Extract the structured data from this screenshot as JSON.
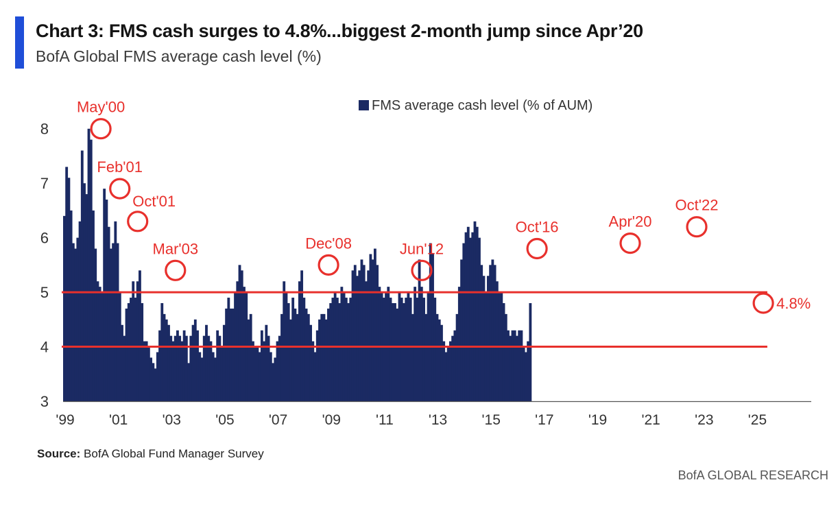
{
  "header": {
    "title": "Chart 3: FMS cash surges to 4.8%...biggest 2-month jump since Apr’20",
    "subtitle": "BofA Global FMS average cash level (%)"
  },
  "footer": {
    "source_label": "Source:",
    "source_text": " BofA Global Fund Manager Survey",
    "brand": "BofA GLOBAL RESEARCH"
  },
  "colors": {
    "bar": "#1b2a63",
    "accent_line": "#e8302c",
    "annotation": "#e8302c",
    "title_bar": "#1f4ed8",
    "axis": "#555555"
  },
  "chart_data": {
    "type": "bar",
    "ylim": [
      3,
      8.5
    ],
    "ytick_values": [
      3,
      4,
      5,
      6,
      7,
      8
    ],
    "ytick_labels": [
      "3",
      "4",
      "5",
      "6",
      "7",
      "8"
    ],
    "x_range": [
      1999.0,
      2027.1
    ],
    "xtick_values": [
      1999,
      2001,
      2003,
      2005,
      2007,
      2009,
      2011,
      2013,
      2015,
      2017,
      2019,
      2021,
      2023,
      2025
    ],
    "xtick_labels": [
      "'99",
      "'01",
      "'03",
      "'05",
      "'07",
      "'09",
      "'11",
      "'13",
      "'15",
      "'17",
      "'19",
      "'21",
      "'23",
      "'25"
    ],
    "grid": false,
    "legend": {
      "position": "top-center",
      "entries": [
        "FMS average cash level (% of AUM)"
      ]
    },
    "reference_lines": [
      5.0,
      4.0
    ],
    "series": [
      {
        "name": "FMS average cash level (% of AUM)",
        "start": 1999.0,
        "step_months": 1,
        "values": [
          6.4,
          7.3,
          7.1,
          6.5,
          5.9,
          5.8,
          6.0,
          6.3,
          7.6,
          7.0,
          6.8,
          8.0,
          7.8,
          6.5,
          5.8,
          5.2,
          5.1,
          5.0,
          6.9,
          6.7,
          6.2,
          5.8,
          5.9,
          6.3,
          5.9,
          5.0,
          4.4,
          4.2,
          4.7,
          4.8,
          4.9,
          5.2,
          4.9,
          5.2,
          5.4,
          4.8,
          4.1,
          4.1,
          4.0,
          3.8,
          3.7,
          3.6,
          3.9,
          4.3,
          4.8,
          4.6,
          4.5,
          4.4,
          4.2,
          4.1,
          4.2,
          4.3,
          4.2,
          4.1,
          4.3,
          4.2,
          3.7,
          4.2,
          4.4,
          4.5,
          4.3,
          3.9,
          3.8,
          4.2,
          4.4,
          4.2,
          4.1,
          3.9,
          3.8,
          4.3,
          4.2,
          4.0,
          4.4,
          4.7,
          4.9,
          4.7,
          4.7,
          5.0,
          5.2,
          5.5,
          5.4,
          5.1,
          5.0,
          4.5,
          4.6,
          4.1,
          4.0,
          4.0,
          3.9,
          4.3,
          4.1,
          4.4,
          4.2,
          3.9,
          3.7,
          3.8,
          4.1,
          4.2,
          4.6,
          5.2,
          5.0,
          4.8,
          4.5,
          4.9,
          4.7,
          4.6,
          5.2,
          5.4,
          4.9,
          4.7,
          4.6,
          4.4,
          4.1,
          3.9,
          4.3,
          4.5,
          4.6,
          4.6,
          4.5,
          4.7,
          4.8,
          4.9,
          5.0,
          4.9,
          4.8,
          5.1,
          5.0,
          4.9,
          4.8,
          4.9,
          5.4,
          5.5,
          5.3,
          5.4,
          5.6,
          5.5,
          5.2,
          5.4,
          5.7,
          5.6,
          5.8,
          5.5,
          5.1,
          5.0,
          4.9,
          5.0,
          5.1,
          4.9,
          4.8,
          4.8,
          4.7,
          5.0,
          4.9,
          4.8,
          4.9,
          5.0,
          4.9,
          4.6,
          5.1,
          4.9,
          5.6,
          5.1,
          4.9,
          4.6,
          5.0,
          5.9,
          5.7,
          4.9,
          4.6,
          4.5,
          4.4,
          4.1,
          3.9,
          4.0,
          4.1,
          4.2,
          4.3,
          4.6,
          5.1,
          5.6,
          5.9,
          6.1,
          6.2,
          6.0,
          6.1,
          6.3,
          6.2,
          6.0,
          5.5,
          5.3,
          5.0,
          5.3,
          5.5,
          5.6,
          5.5,
          5.2,
          5.0,
          5.0,
          4.8,
          4.6,
          4.3,
          4.2,
          4.3,
          4.3,
          4.2,
          4.3,
          4.3,
          4.0,
          3.9,
          4.1,
          4.8
        ]
      }
    ],
    "annotations": [
      {
        "label": "May'00",
        "x": 2000.37,
        "y": 8.0,
        "text_side": "above"
      },
      {
        "label": "Feb'01",
        "x": 2001.08,
        "y": 6.9,
        "text_side": "above"
      },
      {
        "label": "Oct'01",
        "x": 2001.75,
        "y": 6.3,
        "text_side": "above-right"
      },
      {
        "label": "Mar'03",
        "x": 2003.17,
        "y": 5.4,
        "text_side": "above"
      },
      {
        "label": "Dec'08",
        "x": 2008.92,
        "y": 5.5,
        "text_side": "above"
      },
      {
        "label": "Jun'12",
        "x": 2012.42,
        "y": 5.4,
        "text_side": "above"
      },
      {
        "label": "Oct'16",
        "x": 2016.75,
        "y": 5.8,
        "text_side": "above"
      },
      {
        "label": "Apr'20",
        "x": 2020.25,
        "y": 5.9,
        "text_side": "above"
      },
      {
        "label": "Oct'22",
        "x": 2022.75,
        "y": 6.2,
        "text_side": "above"
      },
      {
        "label": "4.8%",
        "x": 2025.25,
        "y": 4.8,
        "text_side": "right"
      }
    ]
  }
}
